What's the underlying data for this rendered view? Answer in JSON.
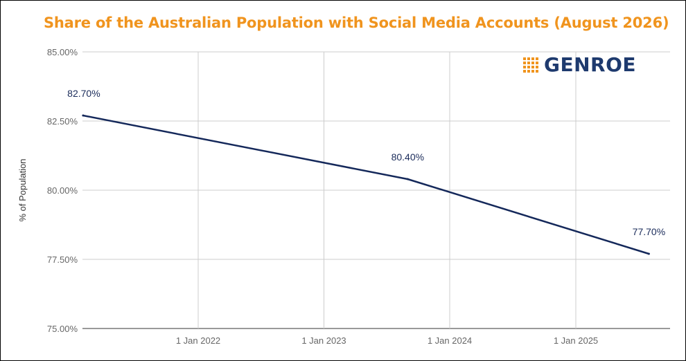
{
  "chart_data": {
    "type": "line",
    "title": "Share of the Australian Population with Social Media Accounts (August 2026)",
    "ylabel": "% of Population",
    "xlabel": "",
    "ylim": [
      75,
      85
    ],
    "y_ticks": [
      "75.00%",
      "77.50%",
      "80.00%",
      "82.50%",
      "85.00%"
    ],
    "x_ticks": [
      "1 Jan 2022",
      "1 Jan 2023",
      "1 Jan 2024",
      "1 Jan 2025"
    ],
    "x_tick_dates": [
      "2022-01-01",
      "2023-01-01",
      "2024-01-01",
      "2025-01-01"
    ],
    "grid": true,
    "legend": "none",
    "series": [
      {
        "x": [
          "2021-02-01",
          "2023-09-01",
          "2025-08-01"
        ],
        "values": [
          82.7,
          80.4,
          77.7
        ],
        "labels": [
          "82.70%",
          "80.40%",
          "77.70%"
        ],
        "color": "#14285a"
      }
    ]
  },
  "logo": {
    "text": "GENROE",
    "text_color": "#1e3a6e",
    "mark_color": "#f0941e"
  },
  "colors": {
    "title": "#f0941e",
    "grid": "#cccccc",
    "axis": "#333333"
  }
}
